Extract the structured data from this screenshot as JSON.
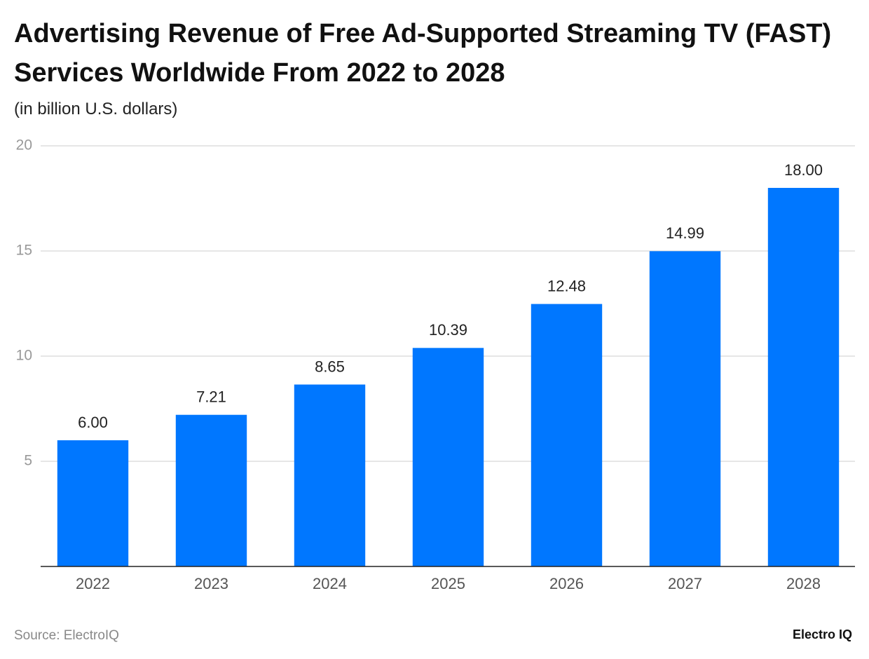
{
  "chart_data": {
    "type": "bar",
    "title": "Advertising Revenue of Free Ad-Supported Streaming TV (FAST) Services Worldwide From 2022 to 2028",
    "subtitle": "(in billion U.S. dollars)",
    "categories": [
      "2022",
      "2023",
      "2024",
      "2025",
      "2026",
      "2027",
      "2028"
    ],
    "values": [
      6,
      7.21,
      8.65,
      10.39,
      12.48,
      14.99,
      18
    ],
    "value_labels": [
      "6.00",
      "7.21",
      "8.65",
      "10.39",
      "12.48",
      "14.99",
      "18.00"
    ],
    "color": "#0077ff",
    "ylim": [
      0,
      20
    ],
    "yticks": [
      5,
      10,
      15,
      20
    ],
    "grid": true,
    "source": "Source: ElectroIQ",
    "brand": "Electro IQ"
  }
}
